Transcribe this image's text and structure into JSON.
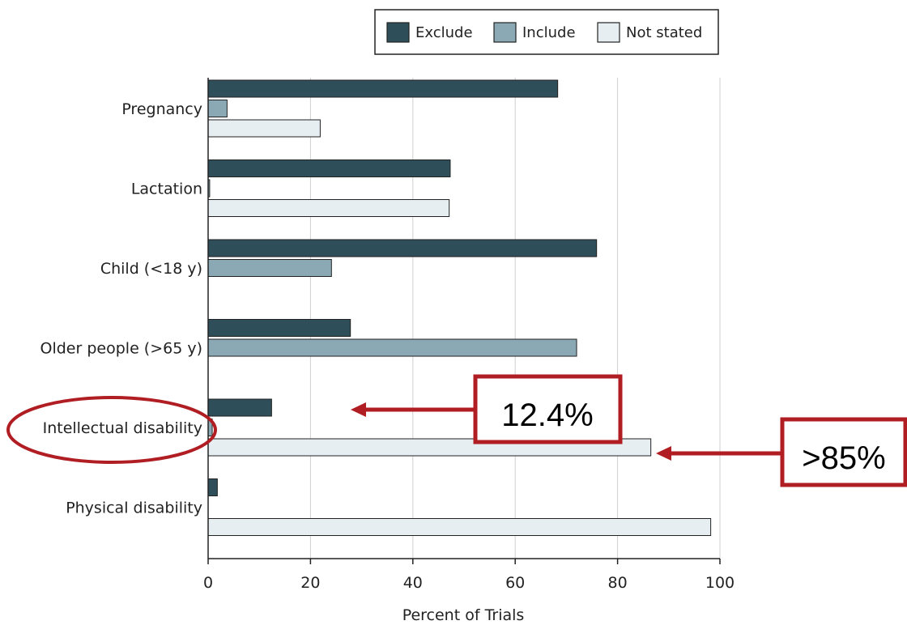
{
  "chart_data": {
    "type": "bar",
    "orientation": "horizontal",
    "categories": [
      "Pregnancy",
      "Lactation",
      "Child (<18 y)",
      "Older people (>65 y)",
      "Intellectual disability",
      "Physical disability"
    ],
    "series": [
      {
        "name": "Exclude",
        "color": "#2e4f5a",
        "values": [
          68.3,
          47.3,
          75.9,
          27.8,
          12.4,
          1.8
        ]
      },
      {
        "name": "Include",
        "color": "#8aa9b5",
        "values": [
          3.7,
          0.3,
          24.1,
          72.0,
          0.8,
          0
        ]
      },
      {
        "name": "Not stated",
        "color": "#e6eef2",
        "values": [
          21.9,
          47.1,
          0,
          0,
          86.5,
          98.2
        ]
      }
    ],
    "xlabel": "Percent of Trials",
    "ylabel": "",
    "xlim": [
      0,
      100
    ],
    "xticks": [
      0,
      20,
      40,
      60,
      80,
      100
    ],
    "grid": "vertical",
    "legend": "top-center",
    "annotations": [
      {
        "text": "12.4%",
        "points_to": "Intellectual disability — Exclude"
      },
      {
        "text": ">85%",
        "points_to": "Intellectual disability — Not stated"
      }
    ],
    "highlighted_category": "Intellectual disability"
  }
}
